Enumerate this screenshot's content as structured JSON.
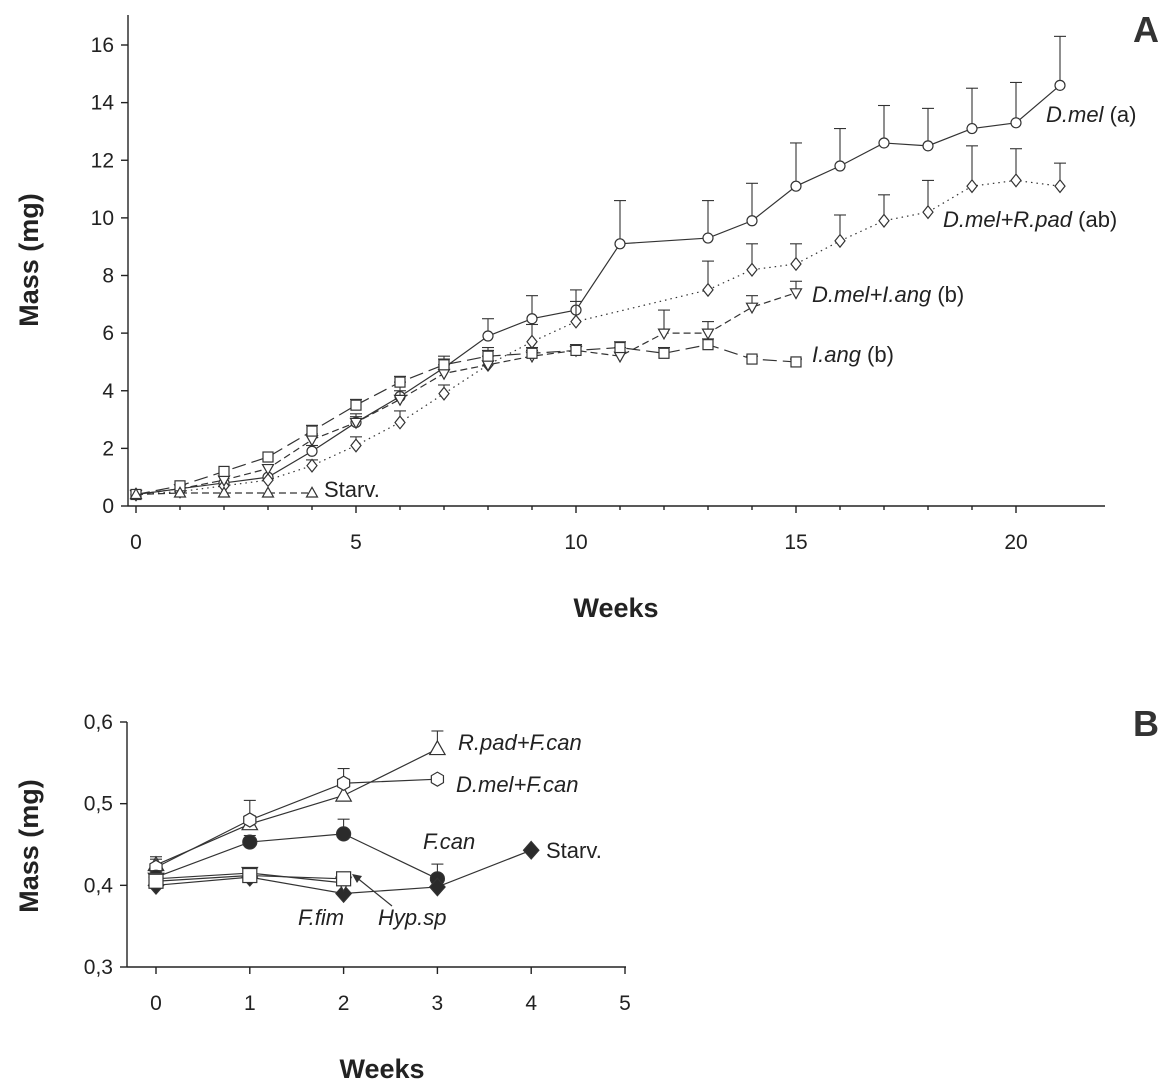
{
  "chart_data": [
    {
      "panel": "A",
      "type": "line",
      "xlabel": "Weeks",
      "ylabel": "Mass (mg)",
      "xlim": [
        0,
        22
      ],
      "ylim": [
        0,
        17
      ],
      "xticks": [
        0,
        5,
        10,
        15,
        20
      ],
      "yticks": [
        0,
        2,
        4,
        6,
        8,
        10,
        12,
        14,
        16
      ],
      "grid": false,
      "legend": "none",
      "series": [
        {
          "name": "D.mel",
          "label_suffix": "(a)",
          "marker": "circle",
          "line": "solid",
          "x": [
            0,
            1,
            2,
            3,
            4,
            5,
            6,
            7,
            8,
            9,
            10,
            11,
            13,
            14,
            15,
            16,
            17,
            18,
            19,
            20,
            21
          ],
          "y": [
            0.4,
            0.6,
            0.8,
            1.0,
            1.9,
            2.9,
            3.8,
            4.8,
            5.9,
            6.5,
            6.8,
            9.1,
            9.3,
            9.9,
            11.1,
            11.8,
            12.6,
            12.5,
            13.1,
            13.3,
            14.6
          ],
          "err": [
            0,
            0,
            0,
            0,
            0.2,
            0.3,
            0.5,
            0.4,
            0.6,
            0.8,
            0.7,
            1.5,
            1.3,
            1.3,
            1.5,
            1.3,
            1.3,
            1.3,
            1.4,
            1.4,
            1.7
          ]
        },
        {
          "name": "D.mel+R.pad",
          "label_suffix": "(ab)",
          "marker": "diamond",
          "line": "dotted",
          "x": [
            0,
            1,
            2,
            3,
            4,
            5,
            6,
            7,
            8,
            9,
            10,
            13,
            14,
            15,
            16,
            17,
            18,
            19,
            20,
            21
          ],
          "y": [
            0.4,
            0.5,
            0.7,
            0.9,
            1.4,
            2.1,
            2.9,
            3.9,
            4.9,
            5.7,
            6.4,
            7.5,
            8.2,
            8.4,
            9.2,
            9.9,
            10.2,
            11.1,
            11.3,
            11.1
          ],
          "err": [
            0,
            0,
            0,
            0,
            0.2,
            0.3,
            0.4,
            0.3,
            0.6,
            0.6,
            0.7,
            1.0,
            0.9,
            0.7,
            0.9,
            0.9,
            1.1,
            1.4,
            1.1,
            0.8
          ]
        },
        {
          "name": "D.mel+I.ang",
          "label_suffix": "(b)",
          "marker": "triangle-down",
          "line": "dashed",
          "x": [
            0,
            1,
            2,
            3,
            4,
            5,
            6,
            7,
            8,
            9,
            10,
            11,
            12,
            13,
            14,
            15
          ],
          "y": [
            0.4,
            0.6,
            0.9,
            1.3,
            2.3,
            2.9,
            3.7,
            4.6,
            4.9,
            5.2,
            5.4,
            5.2,
            6.0,
            6.0,
            6.9,
            7.4
          ],
          "err": [
            0,
            0,
            0,
            0,
            0.2,
            0.2,
            0.3,
            0.3,
            0.3,
            0.2,
            0.2,
            0.3,
            0.8,
            0.4,
            0.4,
            0.4
          ]
        },
        {
          "name": "I.ang",
          "label_suffix": "(b)",
          "marker": "square",
          "line": "longdash",
          "x": [
            0,
            1,
            2,
            3,
            4,
            5,
            6,
            7,
            8,
            9,
            10,
            11,
            12,
            13,
            14,
            15
          ],
          "y": [
            0.4,
            0.7,
            1.2,
            1.7,
            2.6,
            3.5,
            4.3,
            4.9,
            5.2,
            5.3,
            5.4,
            5.5,
            5.3,
            5.6,
            5.1,
            5.0
          ],
          "err": [
            0,
            0,
            0,
            0,
            0.2,
            0.2,
            0.2,
            0.2,
            0.2,
            0.2,
            0.2,
            0.2,
            0.2,
            0.2,
            0.1,
            0.1
          ]
        },
        {
          "name": "Starv.",
          "label_suffix": "",
          "marker": "triangle",
          "line": "dashed",
          "x": [
            0,
            1,
            2,
            3,
            4
          ],
          "y": [
            0.4,
            0.45,
            0.45,
            0.45,
            0.45
          ],
          "err": [
            0,
            0,
            0,
            0,
            0
          ]
        }
      ]
    },
    {
      "panel": "B",
      "type": "line",
      "xlabel": "Weeks",
      "ylabel": "Mass (mg)",
      "xlim": [
        -0.3,
        5
      ],
      "ylim": [
        0.3,
        0.6
      ],
      "xticks": [
        0,
        1,
        2,
        3,
        4,
        5
      ],
      "yticks": [
        "0,3",
        "0,4",
        "0,5",
        "0,6"
      ],
      "ytick_values": [
        0.3,
        0.4,
        0.5,
        0.6
      ],
      "grid": false,
      "legend": "none",
      "series": [
        {
          "name": "R.pad+F.can",
          "marker": "triangle",
          "x": [
            0,
            1,
            2,
            3
          ],
          "y": [
            0.425,
            0.475,
            0.51,
            0.567
          ],
          "err": [
            0.01,
            0.01,
            0.02,
            0.022
          ]
        },
        {
          "name": "D.mel+F.can",
          "marker": "hexagon",
          "x": [
            0,
            1,
            2,
            3
          ],
          "y": [
            0.422,
            0.48,
            0.525,
            0.53
          ],
          "err": [
            0.01,
            0.024,
            0.018,
            0
          ]
        },
        {
          "name": "F.can",
          "marker": "filled-circle",
          "x": [
            0,
            1,
            2,
            3
          ],
          "y": [
            0.41,
            0.453,
            0.463,
            0.408
          ],
          "err": [
            0.008,
            0.008,
            0.018,
            0.018
          ]
        },
        {
          "name": "Starv.",
          "marker": "filled-diamond",
          "x": [
            0,
            1,
            2,
            3,
            4
          ],
          "y": [
            0.4,
            0.41,
            0.39,
            0.398,
            0.443
          ],
          "err": [
            0,
            0,
            0,
            0,
            0
          ]
        },
        {
          "name": "F.fim",
          "marker": "triangle-down",
          "x": [
            0,
            1,
            2
          ],
          "y": [
            0.408,
            0.415,
            0.403
          ],
          "err": [
            0,
            0,
            0
          ]
        },
        {
          "name": "Hyp.sp",
          "marker": "square",
          "x": [
            0,
            1,
            2
          ],
          "y": [
            0.405,
            0.412,
            0.408
          ],
          "err": [
            0,
            0,
            0
          ]
        }
      ]
    }
  ]
}
